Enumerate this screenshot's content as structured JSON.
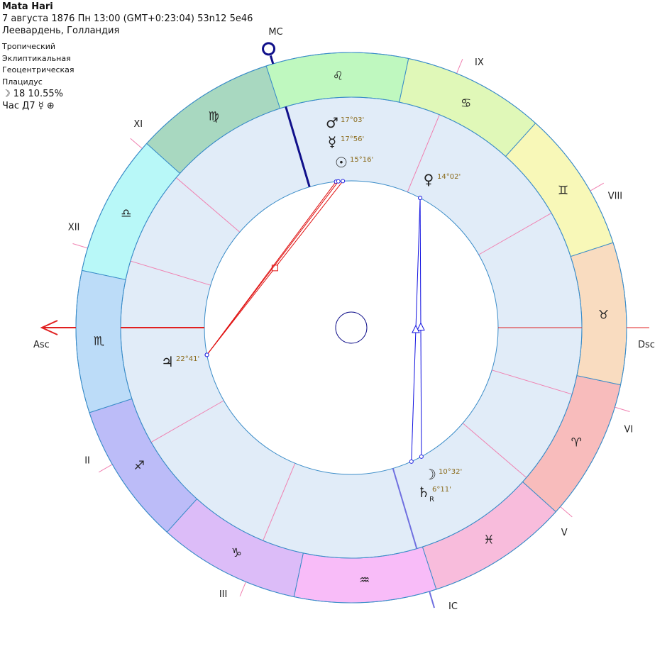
{
  "header": {
    "name": "Mata Hari",
    "datetime": "7 августа 1876  Пн  13:00 (GMT+0:23:04) 53n12  5e46",
    "place": "Леевардень, Голландия",
    "zodiac": "Тропический",
    "coords": "Эклиптикальная",
    "center": "Геоцентрическая",
    "houses": "Плацидус",
    "moon_phase": "☽  18 10.55%",
    "hour": "Час Д7 ☿ ⊕"
  },
  "chart": {
    "ascendant": 222,
    "midheaven": 148.5,
    "angle_labels": {
      "asc": "Asc",
      "dsc": "Dsc",
      "mc": "MC",
      "ic": "IC"
    },
    "colors": {
      "ring_border": "#3a8cc8",
      "house_ring": "#e1ecf8",
      "cusp": "#f080b0",
      "asc_line": "#e02020",
      "mc_line": "#10108a",
      "ic_line": "#7070e0",
      "degree_label": "#8a6a1a",
      "aspect_square": "#e01010",
      "aspect_trine": "#1010e0"
    },
    "signs": [
      {
        "name": "Aries",
        "glyph": "♈",
        "color": "#f8bcbc"
      },
      {
        "name": "Taurus",
        "glyph": "♉",
        "color": "#f9dcc0"
      },
      {
        "name": "Gemini",
        "glyph": "♊",
        "color": "#f8f8b8"
      },
      {
        "name": "Cancer",
        "glyph": "♋",
        "color": "#e0f8b8"
      },
      {
        "name": "Leo",
        "glyph": "♌",
        "color": "#bff8bf"
      },
      {
        "name": "Virgo",
        "glyph": "♍",
        "color": "#a8d8c0"
      },
      {
        "name": "Libra",
        "glyph": "♎",
        "color": "#b8f8f8"
      },
      {
        "name": "Scorpio",
        "glyph": "♏",
        "color": "#bcdcf8"
      },
      {
        "name": "Sagittarius",
        "glyph": "♐",
        "color": "#bcbcf8"
      },
      {
        "name": "Capricorn",
        "glyph": "♑",
        "color": "#dcbcf8"
      },
      {
        "name": "Aquarius",
        "glyph": "♒",
        "color": "#f8bcf8"
      },
      {
        "name": "Pisces",
        "glyph": "♓",
        "color": "#f8bcdc"
      }
    ],
    "house_cusps": [
      {
        "label": "",
        "lon": 222
      },
      {
        "label": "II",
        "lon": 251.8
      },
      {
        "label": "III",
        "lon": 289.5
      },
      {
        "label": "",
        "lon": 328.5
      },
      {
        "label": "V",
        "lon": 1.4
      },
      {
        "label": "VI",
        "lon": 25.2
      },
      {
        "label": "",
        "lon": 42
      },
      {
        "label": "VIII",
        "lon": 71.8
      },
      {
        "label": "IX",
        "lon": 109.5
      },
      {
        "label": "",
        "lon": 148.5
      },
      {
        "label": "XI",
        "lon": 181.4
      },
      {
        "label": "XII",
        "lon": 205.2
      }
    ],
    "planets": [
      {
        "name": "Mars",
        "glyph": "♂",
        "degree": "17°03'",
        "lon": 137.05,
        "retro": ""
      },
      {
        "name": "Mercury",
        "glyph": "☿",
        "degree": "17°56'",
        "lon": 137.93,
        "retro": ""
      },
      {
        "name": "Sun",
        "glyph": "☉",
        "degree": "15°16'",
        "lon": 135.27,
        "retro": ""
      },
      {
        "name": "Venus",
        "glyph": "♀",
        "degree": "14°02'",
        "lon": 104.03,
        "retro": ""
      },
      {
        "name": "Moon",
        "glyph": "☽",
        "degree": "10°32'",
        "lon": 340.53,
        "retro": ""
      },
      {
        "name": "Saturn",
        "glyph": "♄",
        "degree": "6°11'",
        "lon": 336.18,
        "retro": "R"
      },
      {
        "name": "Jupiter",
        "glyph": "♃",
        "degree": "22°41'",
        "lon": 232.68,
        "retro": ""
      }
    ],
    "aspects": [
      {
        "from": "Jupiter",
        "to": "Sun",
        "type": "square"
      },
      {
        "from": "Jupiter",
        "to": "Mercury",
        "type": "square"
      },
      {
        "from": "Jupiter",
        "to": "Mars",
        "type": "square"
      },
      {
        "from": "Venus",
        "to": "Moon",
        "type": "trine"
      },
      {
        "from": "Venus",
        "to": "Saturn",
        "type": "trine"
      }
    ]
  }
}
